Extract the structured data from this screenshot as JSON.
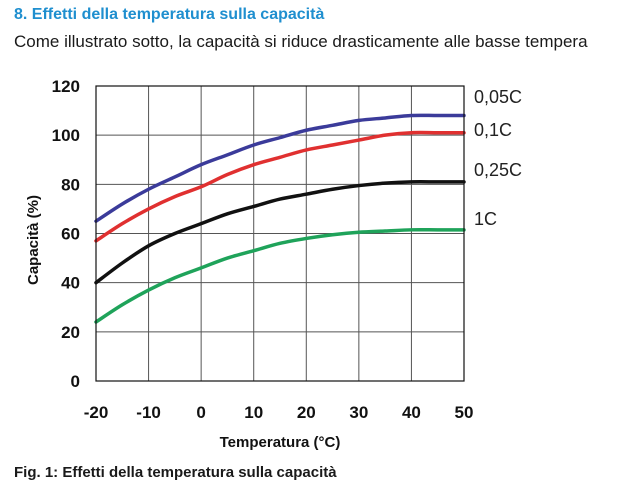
{
  "header": {
    "title": "8. Effetti della temperatura sulla capacità",
    "intro": "Come illustrato sotto, la capacità si riduce drasticamente alle basse tempera"
  },
  "caption": "Fig. 1: Effetti della temperatura sulla capacità",
  "chart_data": {
    "type": "line",
    "title": "",
    "xlabel": "Temperatura (°C)",
    "ylabel": "Capacità (%)",
    "xlim": [
      -20,
      50
    ],
    "ylim": [
      0,
      120
    ],
    "xticks": [
      -20,
      -10,
      0,
      10,
      20,
      30,
      40,
      50
    ],
    "yticks": [
      0,
      20,
      40,
      60,
      80,
      100,
      120
    ],
    "ytick_labels": [
      "0",
      "20",
      "40",
      "60",
      "80",
      "100",
      "120"
    ],
    "grid": true,
    "x": [
      -20,
      -15,
      -10,
      -5,
      0,
      5,
      10,
      15,
      20,
      25,
      30,
      35,
      40,
      45,
      50
    ],
    "series": [
      {
        "name": "0,05C",
        "color": "#3b3b9a",
        "values": [
          65,
          72,
          78,
          83,
          88,
          92,
          96,
          99,
          102,
          104,
          106,
          107,
          108,
          108,
          108
        ]
      },
      {
        "name": "0,1C",
        "color": "#e03030",
        "values": [
          57,
          64,
          70,
          75,
          79,
          84,
          88,
          91,
          94,
          96,
          98,
          100,
          101,
          101,
          101
        ]
      },
      {
        "name": "0,25C",
        "color": "#111111",
        "values": [
          40,
          48,
          55,
          60,
          64,
          68,
          71,
          74,
          76,
          78,
          79.5,
          80.5,
          81,
          81,
          81
        ]
      },
      {
        "name": "1C",
        "color": "#1fa35a",
        "values": [
          24,
          31,
          37,
          42,
          46,
          50,
          53,
          56,
          58,
          59.5,
          60.5,
          61,
          61.5,
          61.5,
          61.5
        ]
      }
    ]
  }
}
